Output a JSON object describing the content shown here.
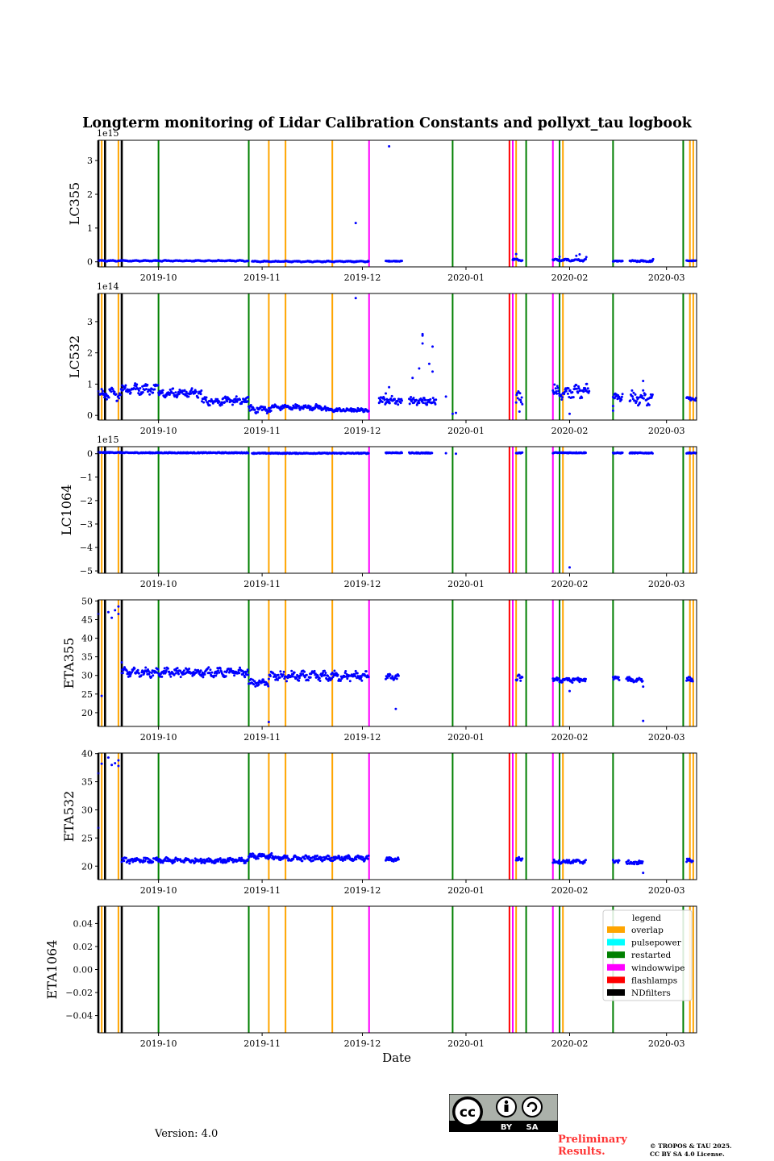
{
  "figure_title": "Longterm monitoring of Lidar Calibration Constants and pollyxt_tau logbook",
  "xlabel": "Date",
  "version_text": "Version: 4.0",
  "preliminary_line1": "Preliminary",
  "preliminary_line2": "Results.",
  "copyright_line1": "© TROPOS & TAU 2025.",
  "copyright_line2": "CC BY SA 4.0 License.",
  "license_badge": {
    "cc": "cc",
    "by": "BY",
    "sa": "SA"
  },
  "colors": {
    "points": "#0000ff",
    "overlap": "#ffa500",
    "pulsepower": "#00ffff",
    "restarted": "#008000",
    "windowwipe": "#ff00ff",
    "flashlamps": "#ff0000",
    "NDfilters": "#000000",
    "prelim": "#ff3333"
  },
  "legend": {
    "title": "legend",
    "entries": [
      {
        "label": "overlap",
        "color": "#ffa500"
      },
      {
        "label": "pulsepower",
        "color": "#00ffff"
      },
      {
        "label": "restarted",
        "color": "#008000"
      },
      {
        "label": "windowwipe",
        "color": "#ff00ff"
      },
      {
        "label": "flashlamps",
        "color": "#ff0000"
      },
      {
        "label": "NDfilters",
        "color": "#000000"
      }
    ]
  },
  "chart_data": {
    "type": "scatter",
    "x_axis": {
      "type": "date",
      "xlim": [
        "2019-09-13",
        "2020-03-10"
      ],
      "tick_labels": [
        "2019-10",
        "2019-11",
        "2019-12",
        "2020-01",
        "2020-02",
        "2020-03"
      ],
      "tick_dates": [
        "2019-10-01",
        "2019-11-01",
        "2019-12-01",
        "2020-01-01",
        "2020-02-01",
        "2020-03-01"
      ]
    },
    "events": [
      {
        "date": "2019-09-13",
        "type": "NDfilters"
      },
      {
        "date": "2019-09-14",
        "type": "overlap"
      },
      {
        "date": "2019-09-15",
        "type": "NDfilters"
      },
      {
        "date": "2019-09-19",
        "type": "overlap"
      },
      {
        "date": "2019-09-20",
        "type": "NDfilters"
      },
      {
        "date": "2019-10-01",
        "type": "restarted"
      },
      {
        "date": "2019-10-28",
        "type": "restarted"
      },
      {
        "date": "2019-11-03",
        "type": "overlap"
      },
      {
        "date": "2019-11-08",
        "type": "overlap"
      },
      {
        "date": "2019-11-22",
        "type": "overlap"
      },
      {
        "date": "2019-12-03",
        "type": "windowwipe"
      },
      {
        "date": "2019-12-28",
        "type": "restarted"
      },
      {
        "date": "2020-01-14",
        "type": "flashlamps"
      },
      {
        "date": "2020-01-15",
        "type": "windowwipe"
      },
      {
        "date": "2020-01-16",
        "type": "overlap"
      },
      {
        "date": "2020-01-19",
        "type": "restarted"
      },
      {
        "date": "2020-01-27",
        "type": "windowwipe"
      },
      {
        "date": "2020-01-29",
        "type": "restarted"
      },
      {
        "date": "2020-01-30",
        "type": "overlap"
      },
      {
        "date": "2020-02-14",
        "type": "restarted"
      },
      {
        "date": "2020-03-06",
        "type": "restarted"
      },
      {
        "date": "2020-03-08",
        "type": "overlap"
      },
      {
        "date": "2020-03-09",
        "type": "overlap"
      }
    ],
    "panels": [
      {
        "ylabel": "LC355",
        "ylim": [
          -0.15,
          3.6
        ],
        "yticks": [
          0,
          1,
          2,
          3
        ],
        "ytick_labels": [
          "0",
          "1",
          "2",
          "3"
        ],
        "offset_label": "1e15",
        "scatter_points": [
          [
            "2019-11-29",
            1.15
          ],
          [
            "2019-12-09",
            3.42
          ],
          [
            "2020-01-16",
            0.23
          ],
          [
            "2020-01-29",
            0.15
          ],
          [
            "2020-02-03",
            0.18
          ],
          [
            "2020-02-04",
            0.22
          ],
          [
            "2020-02-06",
            0.14
          ],
          [
            "2020-02-26",
            0.08
          ]
        ],
        "series": [
          {
            "start": "2019-09-13",
            "end": "2019-09-20",
            "base": 0.03,
            "amp": 0.01,
            "noise": 0.01
          },
          {
            "start": "2019-09-20",
            "end": "2019-10-28",
            "base": 0.03,
            "amp": 0.01,
            "noise": 0.01
          },
          {
            "start": "2019-10-29",
            "end": "2019-12-03",
            "base": 0.01,
            "amp": 0.01,
            "noise": 0.01
          },
          {
            "start": "2019-12-08",
            "end": "2019-12-13",
            "base": 0.02,
            "amp": 0.0,
            "noise": 0.01
          },
          {
            "start": "2020-01-15",
            "end": "2020-01-18",
            "base": 0.06,
            "amp": 0.02,
            "noise": 0.02
          },
          {
            "start": "2020-01-27",
            "end": "2020-02-06",
            "base": 0.05,
            "amp": 0.02,
            "noise": 0.02
          },
          {
            "start": "2020-02-14",
            "end": "2020-02-17",
            "base": 0.02,
            "amp": 0.0,
            "noise": 0.01
          },
          {
            "start": "2020-02-19",
            "end": "2020-02-26",
            "base": 0.02,
            "amp": 0.01,
            "noise": 0.02
          },
          {
            "start": "2020-03-07",
            "end": "2020-03-10",
            "base": 0.03,
            "amp": 0.0,
            "noise": 0.01
          }
        ]
      },
      {
        "ylabel": "LC532",
        "ylim": [
          -0.15,
          3.9
        ],
        "yticks": [
          0,
          1,
          2,
          3
        ],
        "ytick_labels": [
          "0",
          "1",
          "2",
          "3"
        ],
        "offset_label": "1e14",
        "scatter_points": [
          [
            "2019-11-29",
            3.75
          ],
          [
            "2019-12-16",
            1.2
          ],
          [
            "2019-12-18",
            1.5
          ],
          [
            "2019-12-19",
            2.3
          ],
          [
            "2019-12-19",
            2.6
          ],
          [
            "2019-12-19",
            2.55
          ],
          [
            "2019-12-21",
            1.65
          ],
          [
            "2019-12-22",
            2.2
          ],
          [
            "2019-12-22",
            1.4
          ],
          [
            "2019-12-23",
            0.5
          ],
          [
            "2019-12-26",
            0.6
          ],
          [
            "2019-12-28",
            0.05
          ],
          [
            "2019-12-29",
            0.08
          ],
          [
            "2019-12-09",
            0.9
          ],
          [
            "2019-12-08",
            0.7
          ],
          [
            "2019-12-06",
            0.55
          ],
          [
            "2020-02-23",
            1.1
          ],
          [
            "2020-02-06",
            1.0
          ],
          [
            "2020-02-01",
            0.05
          ],
          [
            "2020-01-17",
            0.12
          ],
          [
            "2020-02-14",
            0.15
          ],
          [
            "2020-02-14",
            0.3
          ]
        ],
        "series": [
          {
            "start": "2019-09-13",
            "end": "2019-09-20",
            "base": 0.68,
            "amp": 0.1,
            "noise": 0.12
          },
          {
            "start": "2019-09-20",
            "end": "2019-10-01",
            "base": 0.85,
            "amp": 0.08,
            "noise": 0.12
          },
          {
            "start": "2019-10-01",
            "end": "2019-10-14",
            "base": 0.72,
            "amp": 0.08,
            "noise": 0.1
          },
          {
            "start": "2019-10-14",
            "end": "2019-10-28",
            "base": 0.46,
            "amp": 0.06,
            "noise": 0.1
          },
          {
            "start": "2019-10-28",
            "end": "2019-11-04",
            "base": 0.2,
            "amp": 0.05,
            "noise": 0.09
          },
          {
            "start": "2019-11-04",
            "end": "2019-11-20",
            "base": 0.26,
            "amp": 0.04,
            "noise": 0.06
          },
          {
            "start": "2019-11-20",
            "end": "2019-12-03",
            "base": 0.17,
            "amp": 0.02,
            "noise": 0.05
          },
          {
            "start": "2019-12-06",
            "end": "2019-12-13",
            "base": 0.48,
            "amp": 0.05,
            "noise": 0.1
          },
          {
            "start": "2019-12-15",
            "end": "2019-12-23",
            "base": 0.45,
            "amp": 0.05,
            "noise": 0.1
          },
          {
            "start": "2020-01-16",
            "end": "2020-01-18",
            "base": 0.55,
            "amp": 0.1,
            "noise": 0.15
          },
          {
            "start": "2020-01-27",
            "end": "2020-02-07",
            "base": 0.75,
            "amp": 0.12,
            "noise": 0.15
          },
          {
            "start": "2020-02-14",
            "end": "2020-02-17",
            "base": 0.6,
            "amp": 0.05,
            "noise": 0.12
          },
          {
            "start": "2020-02-19",
            "end": "2020-02-26",
            "base": 0.55,
            "amp": 0.1,
            "noise": 0.15
          },
          {
            "start": "2020-03-07",
            "end": "2020-03-10",
            "base": 0.52,
            "amp": 0.03,
            "noise": 0.06
          }
        ]
      },
      {
        "ylabel": "LC1064",
        "ylim": [
          -5.1,
          0.3
        ],
        "yticks": [
          0,
          -1,
          -2,
          -3,
          -4,
          -5
        ],
        "ytick_labels": [
          "0",
          "−1",
          "−2",
          "−3",
          "−4",
          "−5"
        ],
        "offset_label": "1e15",
        "scatter_points": [
          [
            "2020-02-01",
            -4.85
          ],
          [
            "2019-12-26",
            0.02
          ],
          [
            "2019-12-29",
            0.0
          ]
        ],
        "series": [
          {
            "start": "2019-09-13",
            "end": "2019-09-20",
            "base": 0.05,
            "amp": 0.0,
            "noise": 0.02
          },
          {
            "start": "2019-09-20",
            "end": "2019-10-28",
            "base": 0.04,
            "amp": 0.0,
            "noise": 0.02
          },
          {
            "start": "2019-10-29",
            "end": "2019-12-03",
            "base": 0.02,
            "amp": 0.0,
            "noise": 0.02
          },
          {
            "start": "2019-12-08",
            "end": "2019-12-13",
            "base": 0.04,
            "amp": 0.0,
            "noise": 0.02
          },
          {
            "start": "2019-12-15",
            "end": "2019-12-22",
            "base": 0.03,
            "amp": 0.0,
            "noise": 0.02
          },
          {
            "start": "2020-01-16",
            "end": "2020-01-18",
            "base": 0.03,
            "amp": 0.0,
            "noise": 0.02
          },
          {
            "start": "2020-01-27",
            "end": "2020-02-06",
            "base": 0.04,
            "amp": 0.0,
            "noise": 0.02
          },
          {
            "start": "2020-02-14",
            "end": "2020-02-17",
            "base": 0.03,
            "amp": 0.0,
            "noise": 0.02
          },
          {
            "start": "2020-02-19",
            "end": "2020-02-26",
            "base": 0.03,
            "amp": 0.0,
            "noise": 0.02
          },
          {
            "start": "2020-03-07",
            "end": "2020-03-10",
            "base": 0.03,
            "amp": 0.0,
            "noise": 0.02
          }
        ]
      },
      {
        "ylabel": "ETA355",
        "ylim": [
          16.3,
          50.3
        ],
        "yticks": [
          20,
          25,
          30,
          35,
          40,
          45,
          50
        ],
        "ytick_labels": [
          "20",
          "25",
          "30",
          "35",
          "40",
          "45",
          "50"
        ],
        "offset_label": "",
        "scatter_points": [
          [
            "2019-09-13",
            46.5
          ],
          [
            "2019-09-14",
            24.5
          ],
          [
            "2019-09-16",
            47.0
          ],
          [
            "2019-09-17",
            45.5
          ],
          [
            "2019-09-18",
            47.5
          ],
          [
            "2019-09-19",
            48.5
          ],
          [
            "2019-09-19",
            46.5
          ],
          [
            "2019-09-20",
            33.5
          ],
          [
            "2019-11-03",
            17.5
          ],
          [
            "2019-12-11",
            21.0
          ],
          [
            "2020-02-01",
            25.8
          ],
          [
            "2020-02-23",
            17.8
          ],
          [
            "2020-02-23",
            27.0
          ]
        ],
        "series": [
          {
            "start": "2019-09-20",
            "end": "2019-10-28",
            "base": 30.8,
            "amp": 0.6,
            "noise": 0.8
          },
          {
            "start": "2019-10-28",
            "end": "2019-11-03",
            "base": 28.0,
            "amp": 0.5,
            "noise": 0.6
          },
          {
            "start": "2019-11-03",
            "end": "2019-12-03",
            "base": 29.8,
            "amp": 0.6,
            "noise": 0.9
          },
          {
            "start": "2019-12-08",
            "end": "2019-12-12",
            "base": 29.5,
            "amp": 0.4,
            "noise": 0.6
          },
          {
            "start": "2020-01-16",
            "end": "2020-01-18",
            "base": 29.0,
            "amp": 0.5,
            "noise": 0.8
          },
          {
            "start": "2020-01-27",
            "end": "2020-02-06",
            "base": 28.8,
            "amp": 0.3,
            "noise": 0.5
          },
          {
            "start": "2020-02-14",
            "end": "2020-02-16",
            "base": 29.2,
            "amp": 0.2,
            "noise": 0.4
          },
          {
            "start": "2020-02-18",
            "end": "2020-02-23",
            "base": 28.8,
            "amp": 0.3,
            "noise": 0.5
          },
          {
            "start": "2020-03-07",
            "end": "2020-03-09",
            "base": 28.8,
            "amp": 0.3,
            "noise": 0.5
          }
        ]
      },
      {
        "ylabel": "ETA532",
        "ylim": [
          17.6,
          40.1
        ],
        "yticks": [
          20,
          25,
          30,
          35,
          40
        ],
        "ytick_labels": [
          "20",
          "25",
          "30",
          "35",
          "40"
        ],
        "offset_label": "",
        "scatter_points": [
          [
            "2019-09-13",
            36.5
          ],
          [
            "2019-09-13",
            26.8
          ],
          [
            "2019-09-14",
            38.2
          ],
          [
            "2019-09-16",
            39.3
          ],
          [
            "2019-09-17",
            38.0
          ],
          [
            "2019-09-18",
            38.3
          ],
          [
            "2019-09-19",
            37.8
          ],
          [
            "2019-09-19",
            38.8
          ],
          [
            "2020-02-23",
            18.8
          ]
        ],
        "series": [
          {
            "start": "2019-09-20",
            "end": "2019-10-28",
            "base": 21.0,
            "amp": 0.2,
            "noise": 0.35
          },
          {
            "start": "2019-10-28",
            "end": "2019-11-04",
            "base": 21.8,
            "amp": 0.2,
            "noise": 0.35
          },
          {
            "start": "2019-11-04",
            "end": "2019-12-03",
            "base": 21.4,
            "amp": 0.2,
            "noise": 0.35
          },
          {
            "start": "2019-12-08",
            "end": "2019-12-12",
            "base": 21.2,
            "amp": 0.1,
            "noise": 0.3
          },
          {
            "start": "2020-01-16",
            "end": "2020-01-18",
            "base": 21.2,
            "amp": 0.1,
            "noise": 0.3
          },
          {
            "start": "2020-01-27",
            "end": "2020-02-06",
            "base": 20.8,
            "amp": 0.1,
            "noise": 0.3
          },
          {
            "start": "2020-02-14",
            "end": "2020-02-16",
            "base": 20.8,
            "amp": 0.1,
            "noise": 0.3
          },
          {
            "start": "2020-02-18",
            "end": "2020-02-23",
            "base": 20.6,
            "amp": 0.1,
            "noise": 0.3
          },
          {
            "start": "2020-03-07",
            "end": "2020-03-09",
            "base": 21.0,
            "amp": 0.1,
            "noise": 0.3
          }
        ]
      },
      {
        "ylabel": "ETA1064",
        "ylim": [
          -0.055,
          0.055
        ],
        "yticks": [
          -0.04,
          -0.02,
          0.0,
          0.02,
          0.04
        ],
        "ytick_labels": [
          "−0.04",
          "−0.02",
          "0.00",
          "0.02",
          "0.04"
        ],
        "offset_label": "",
        "scatter_points": [],
        "series": []
      }
    ]
  }
}
